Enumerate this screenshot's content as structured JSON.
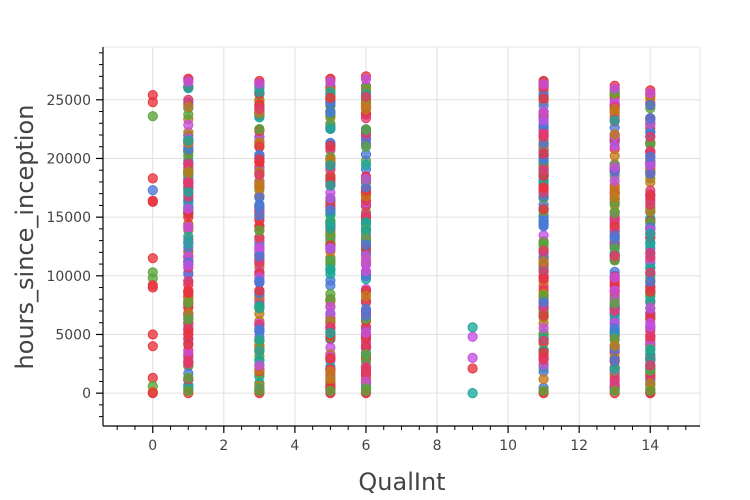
{
  "chart_data": {
    "type": "scatter",
    "xlabel": "QualInt",
    "ylabel": "hours_since_inception",
    "xlim": [
      -1.4,
      15.4
    ],
    "ylim": [
      -2800,
      29500
    ],
    "xticks": [
      0,
      2,
      4,
      6,
      8,
      10,
      12,
      14
    ],
    "yticks": [
      0,
      5000,
      10000,
      15000,
      20000,
      25000
    ],
    "xtick_labels": [
      "0",
      "2",
      "4",
      "6",
      "8",
      "10",
      "12",
      "14"
    ],
    "ytick_labels": [
      "0",
      "5000",
      "10000",
      "15000",
      "20000",
      "25000"
    ],
    "grid": true,
    "point_colors": [
      "#e8333c",
      "#5aa43a",
      "#4a78d8",
      "#c44fe0",
      "#1aa89a",
      "#c2791a",
      "#e03a6a"
    ],
    "dense_columns": [
      {
        "x": 1,
        "ymin": 0,
        "ymax": 26800
      },
      {
        "x": 3,
        "ymin": 0,
        "ymax": 26600
      },
      {
        "x": 5,
        "ymin": 0,
        "ymax": 26800
      },
      {
        "x": 6,
        "ymin": 0,
        "ymax": 27000
      },
      {
        "x": 11,
        "ymin": 0,
        "ymax": 26600
      },
      {
        "x": 13,
        "ymin": 0,
        "ymax": 26200
      },
      {
        "x": 14,
        "ymin": 0,
        "ymax": 25800
      }
    ],
    "points": [
      {
        "x": 0,
        "y": 25400,
        "c": 0
      },
      {
        "x": 0,
        "y": 24800,
        "c": 0
      },
      {
        "x": 0,
        "y": 23600,
        "c": 1
      },
      {
        "x": 0,
        "y": 18300,
        "c": 0
      },
      {
        "x": 0,
        "y": 17300,
        "c": 2
      },
      {
        "x": 0,
        "y": 16400,
        "c": 0
      },
      {
        "x": 0,
        "y": 16300,
        "c": 0
      },
      {
        "x": 0,
        "y": 11500,
        "c": 0
      },
      {
        "x": 0,
        "y": 10300,
        "c": 1
      },
      {
        "x": 0,
        "y": 9800,
        "c": 1
      },
      {
        "x": 0,
        "y": 9200,
        "c": 0
      },
      {
        "x": 0,
        "y": 9000,
        "c": 0
      },
      {
        "x": 0,
        "y": 5000,
        "c": 0
      },
      {
        "x": 0,
        "y": 4000,
        "c": 0
      },
      {
        "x": 0,
        "y": 1300,
        "c": 0
      },
      {
        "x": 0,
        "y": 600,
        "c": 1
      },
      {
        "x": 0,
        "y": 100,
        "c": 5
      },
      {
        "x": 0,
        "y": 0,
        "c": 0
      },
      {
        "x": 9,
        "y": 5600,
        "c": 4
      },
      {
        "x": 9,
        "y": 4800,
        "c": 3
      },
      {
        "x": 9,
        "y": 3000,
        "c": 3
      },
      {
        "x": 9,
        "y": 2100,
        "c": 0
      },
      {
        "x": 9,
        "y": 0,
        "c": 4
      }
    ]
  }
}
